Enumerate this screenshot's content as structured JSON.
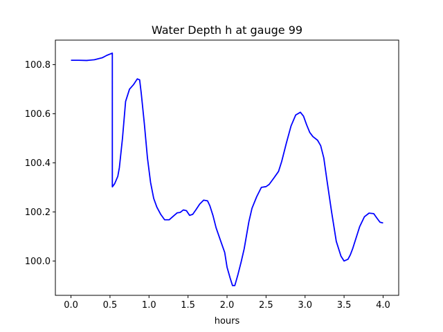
{
  "chart_data": {
    "type": "line",
    "title": "Water Depth h at gauge 99",
    "xlabel": "hours",
    "ylabel": "",
    "xlim": [
      -0.2,
      4.2
    ],
    "ylim": [
      99.86,
      100.9
    ],
    "xticks": [
      0.0,
      0.5,
      1.0,
      1.5,
      2.0,
      2.5,
      3.0,
      3.5,
      4.0
    ],
    "xtick_labels": [
      "0.0",
      "0.5",
      "1.0",
      "1.5",
      "2.0",
      "2.5",
      "3.0",
      "3.5",
      "4.0"
    ],
    "yticks": [
      100.0,
      100.2,
      100.4,
      100.6,
      100.8
    ],
    "ytick_labels": [
      "100.0",
      "100.2",
      "100.4",
      "100.6",
      "100.8"
    ],
    "grid": false,
    "series": [
      {
        "color": "#0000ff",
        "x": [
          0.0,
          0.1,
          0.2,
          0.3,
          0.4,
          0.46,
          0.5,
          0.53,
          0.53,
          0.56,
          0.6,
          0.62,
          0.66,
          0.7,
          0.75,
          0.8,
          0.85,
          0.88,
          0.9,
          0.94,
          0.98,
          1.02,
          1.06,
          1.1,
          1.15,
          1.2,
          1.26,
          1.32,
          1.36,
          1.4,
          1.44,
          1.48,
          1.52,
          1.56,
          1.6,
          1.65,
          1.7,
          1.75,
          1.78,
          1.82,
          1.86,
          1.92,
          1.97,
          2.0,
          2.04,
          2.07,
          2.1,
          2.14,
          2.18,
          2.22,
          2.28,
          2.32,
          2.38,
          2.44,
          2.5,
          2.54,
          2.6,
          2.66,
          2.7,
          2.76,
          2.82,
          2.88,
          2.94,
          2.98,
          3.02,
          3.06,
          3.1,
          3.16,
          3.2,
          3.24,
          3.28,
          3.34,
          3.4,
          3.46,
          3.5,
          3.55,
          3.58,
          3.61,
          3.65,
          3.7,
          3.76,
          3.82,
          3.88,
          3.92,
          3.96,
          4.0
        ],
        "y": [
          100.818,
          100.818,
          100.817,
          100.82,
          100.828,
          100.838,
          100.843,
          100.847,
          100.302,
          100.315,
          100.345,
          100.38,
          100.5,
          100.65,
          100.7,
          100.718,
          100.742,
          100.738,
          100.685,
          100.56,
          100.42,
          100.32,
          100.255,
          100.22,
          100.19,
          100.168,
          100.168,
          100.185,
          100.196,
          100.198,
          100.208,
          100.205,
          100.186,
          100.19,
          100.208,
          100.232,
          100.248,
          100.245,
          100.225,
          100.185,
          100.135,
          100.08,
          100.035,
          99.975,
          99.93,
          99.9,
          99.9,
          99.945,
          99.995,
          100.05,
          100.16,
          100.215,
          100.262,
          100.3,
          100.303,
          100.312,
          100.338,
          100.365,
          100.405,
          100.48,
          100.55,
          100.595,
          100.606,
          100.59,
          100.555,
          100.524,
          100.507,
          100.492,
          100.47,
          100.42,
          100.33,
          100.2,
          100.08,
          100.02,
          100.0,
          100.007,
          100.025,
          100.05,
          100.09,
          100.14,
          100.18,
          100.195,
          100.193,
          100.175,
          100.158,
          100.155
        ]
      }
    ]
  }
}
